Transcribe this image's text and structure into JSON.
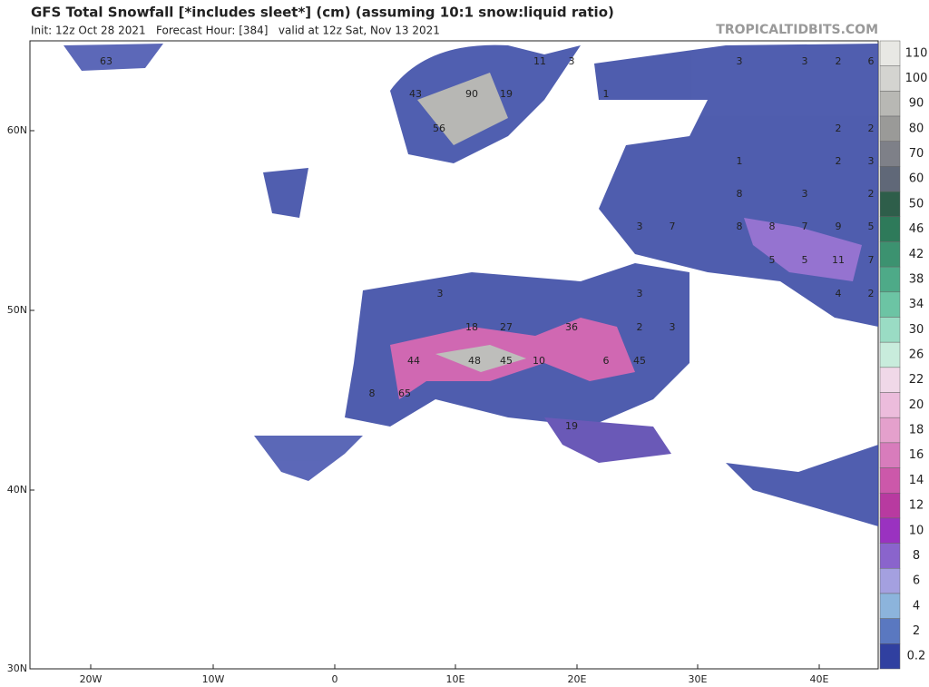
{
  "header": {
    "title": "GFS Total Snowfall [*includes sleet*] (cm) (assuming 10:1 snow:liquid ratio)",
    "subtitle": "Init: 12z Oct 28 2021   Forecast Hour: [384]   valid at 12z Sat, Nov 13 2021",
    "watermark": "TROPICALTIDBITS.COM"
  },
  "map": {
    "lat_labels": [
      "60N",
      "50N",
      "40N",
      "30N"
    ],
    "lon_labels": [
      "20W",
      "10W",
      "0",
      "10E",
      "20E",
      "30E",
      "40E"
    ],
    "point_values": [
      63,
      43,
      90,
      19,
      56,
      11,
      3,
      3,
      3,
      2,
      6,
      1,
      2,
      2,
      1,
      2,
      3,
      8,
      3,
      2,
      3,
      7,
      8,
      8,
      7,
      9,
      5,
      5,
      5,
      11,
      7,
      4,
      2,
      3,
      3,
      18,
      27,
      36,
      2,
      3,
      44,
      48,
      45,
      10,
      6,
      45,
      8,
      65,
      19
    ]
  },
  "colorbar": {
    "levels": [
      110,
      100,
      90,
      80,
      70,
      60,
      50,
      46,
      42,
      38,
      34,
      30,
      26,
      22,
      20,
      18,
      16,
      14,
      12,
      10,
      8,
      6,
      4,
      2,
      0.2
    ],
    "colors": [
      "#e8e8e4",
      "#d4d4d0",
      "#b8b8b4",
      "#9a9a98",
      "#7e8088",
      "#606878",
      "#2e5e4a",
      "#2e7a5a",
      "#3c9270",
      "#4eaa88",
      "#6cc4a4",
      "#9adcc4",
      "#c8ecdc",
      "#f0d8e8",
      "#ecbcdc",
      "#e4a0cc",
      "#d87cbc",
      "#cc58aa",
      "#b83aa0",
      "#9a32c0",
      "#8a64cc",
      "#a4a0e0",
      "#8cb4dc",
      "#5a78c0",
      "#3040a0"
    ]
  }
}
